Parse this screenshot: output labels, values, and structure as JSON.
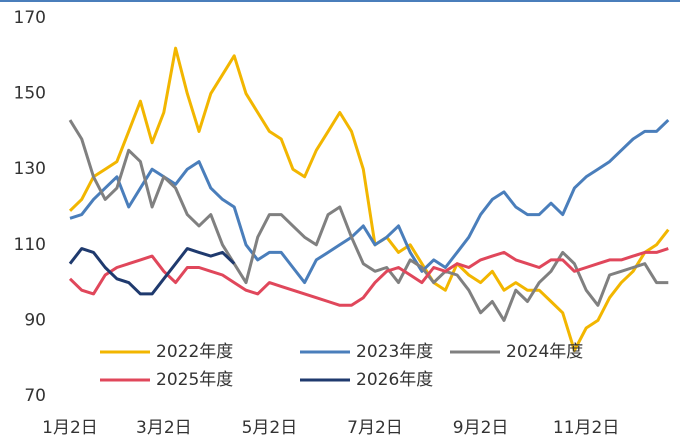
{
  "chart_data": {
    "type": "line",
    "categories": [
      "1月2日",
      null,
      null,
      null,
      null,
      null,
      null,
      null,
      "3月2日",
      null,
      null,
      null,
      null,
      null,
      null,
      null,
      null,
      "5月2日",
      null,
      null,
      null,
      null,
      null,
      null,
      null,
      null,
      "7月2日",
      null,
      null,
      null,
      null,
      null,
      null,
      null,
      null,
      "9月2日",
      null,
      null,
      null,
      null,
      null,
      null,
      null,
      null,
      "11月2日",
      null,
      null,
      null,
      null,
      null,
      null,
      null
    ],
    "series": [
      {
        "name": "2022年度",
        "color": "#f2b600",
        "values": [
          119,
          122,
          128,
          130,
          132,
          140,
          148,
          137,
          145,
          162,
          150,
          140,
          150,
          155,
          160,
          150,
          145,
          140,
          138,
          130,
          128,
          135,
          140,
          145,
          140,
          130,
          110,
          112,
          108,
          110,
          105,
          100,
          98,
          105,
          102,
          100,
          103,
          98,
          100,
          98,
          98,
          95,
          92,
          82,
          88,
          90,
          96,
          100,
          103,
          108,
          110,
          114
        ]
      },
      {
        "name": "2023年度",
        "color": "#4a7ebb",
        "values": [
          117,
          118,
          122,
          125,
          128,
          120,
          125,
          130,
          128,
          126,
          130,
          132,
          125,
          122,
          120,
          110,
          106,
          108,
          108,
          104,
          100,
          106,
          108,
          110,
          112,
          115,
          110,
          112,
          115,
          108,
          103,
          106,
          104,
          108,
          112,
          118,
          122,
          124,
          120,
          118,
          118,
          121,
          118,
          125,
          128,
          130,
          132,
          135,
          138,
          140,
          140,
          143
        ]
      },
      {
        "name": "2024年度",
        "color": "#808080",
        "values": [
          143,
          138,
          128,
          122,
          125,
          135,
          132,
          120,
          128,
          125,
          118,
          115,
          118,
          110,
          105,
          100,
          112,
          118,
          118,
          115,
          112,
          110,
          118,
          120,
          112,
          105,
          103,
          104,
          100,
          106,
          104,
          100,
          103,
          102,
          98,
          92,
          95,
          90,
          98,
          95,
          100,
          103,
          108,
          105,
          98,
          94,
          102,
          103,
          104,
          105,
          100,
          100
        ]
      },
      {
        "name": "2025年度",
        "color": "#e0475b",
        "values": [
          101,
          98,
          97,
          102,
          104,
          105,
          106,
          107,
          103,
          100,
          104,
          104,
          103,
          102,
          100,
          98,
          97,
          100,
          99,
          98,
          97,
          96,
          95,
          94,
          94,
          96,
          100,
          103,
          104,
          102,
          100,
          104,
          103,
          105,
          104,
          106,
          107,
          108,
          106,
          105,
          104,
          106,
          106,
          103,
          104,
          105,
          106,
          106,
          107,
          108,
          108,
          109
        ]
      },
      {
        "name": "2026年度",
        "color": "#1f3a6e",
        "values": [
          105,
          109,
          108,
          104,
          101,
          100,
          97,
          97,
          101,
          105,
          109,
          108,
          107,
          108,
          105,
          null,
          null,
          null,
          null,
          null,
          null,
          null,
          null,
          null,
          null,
          null,
          null,
          null,
          null,
          null,
          null,
          null,
          null,
          null,
          null,
          null,
          null,
          null,
          null,
          null,
          null,
          null,
          null,
          null,
          null,
          null,
          null,
          null,
          null,
          null,
          null,
          null
        ]
      }
    ],
    "ylim": [
      70,
      170
    ],
    "yticks": [
      70,
      90,
      110,
      130,
      150,
      170
    ]
  }
}
